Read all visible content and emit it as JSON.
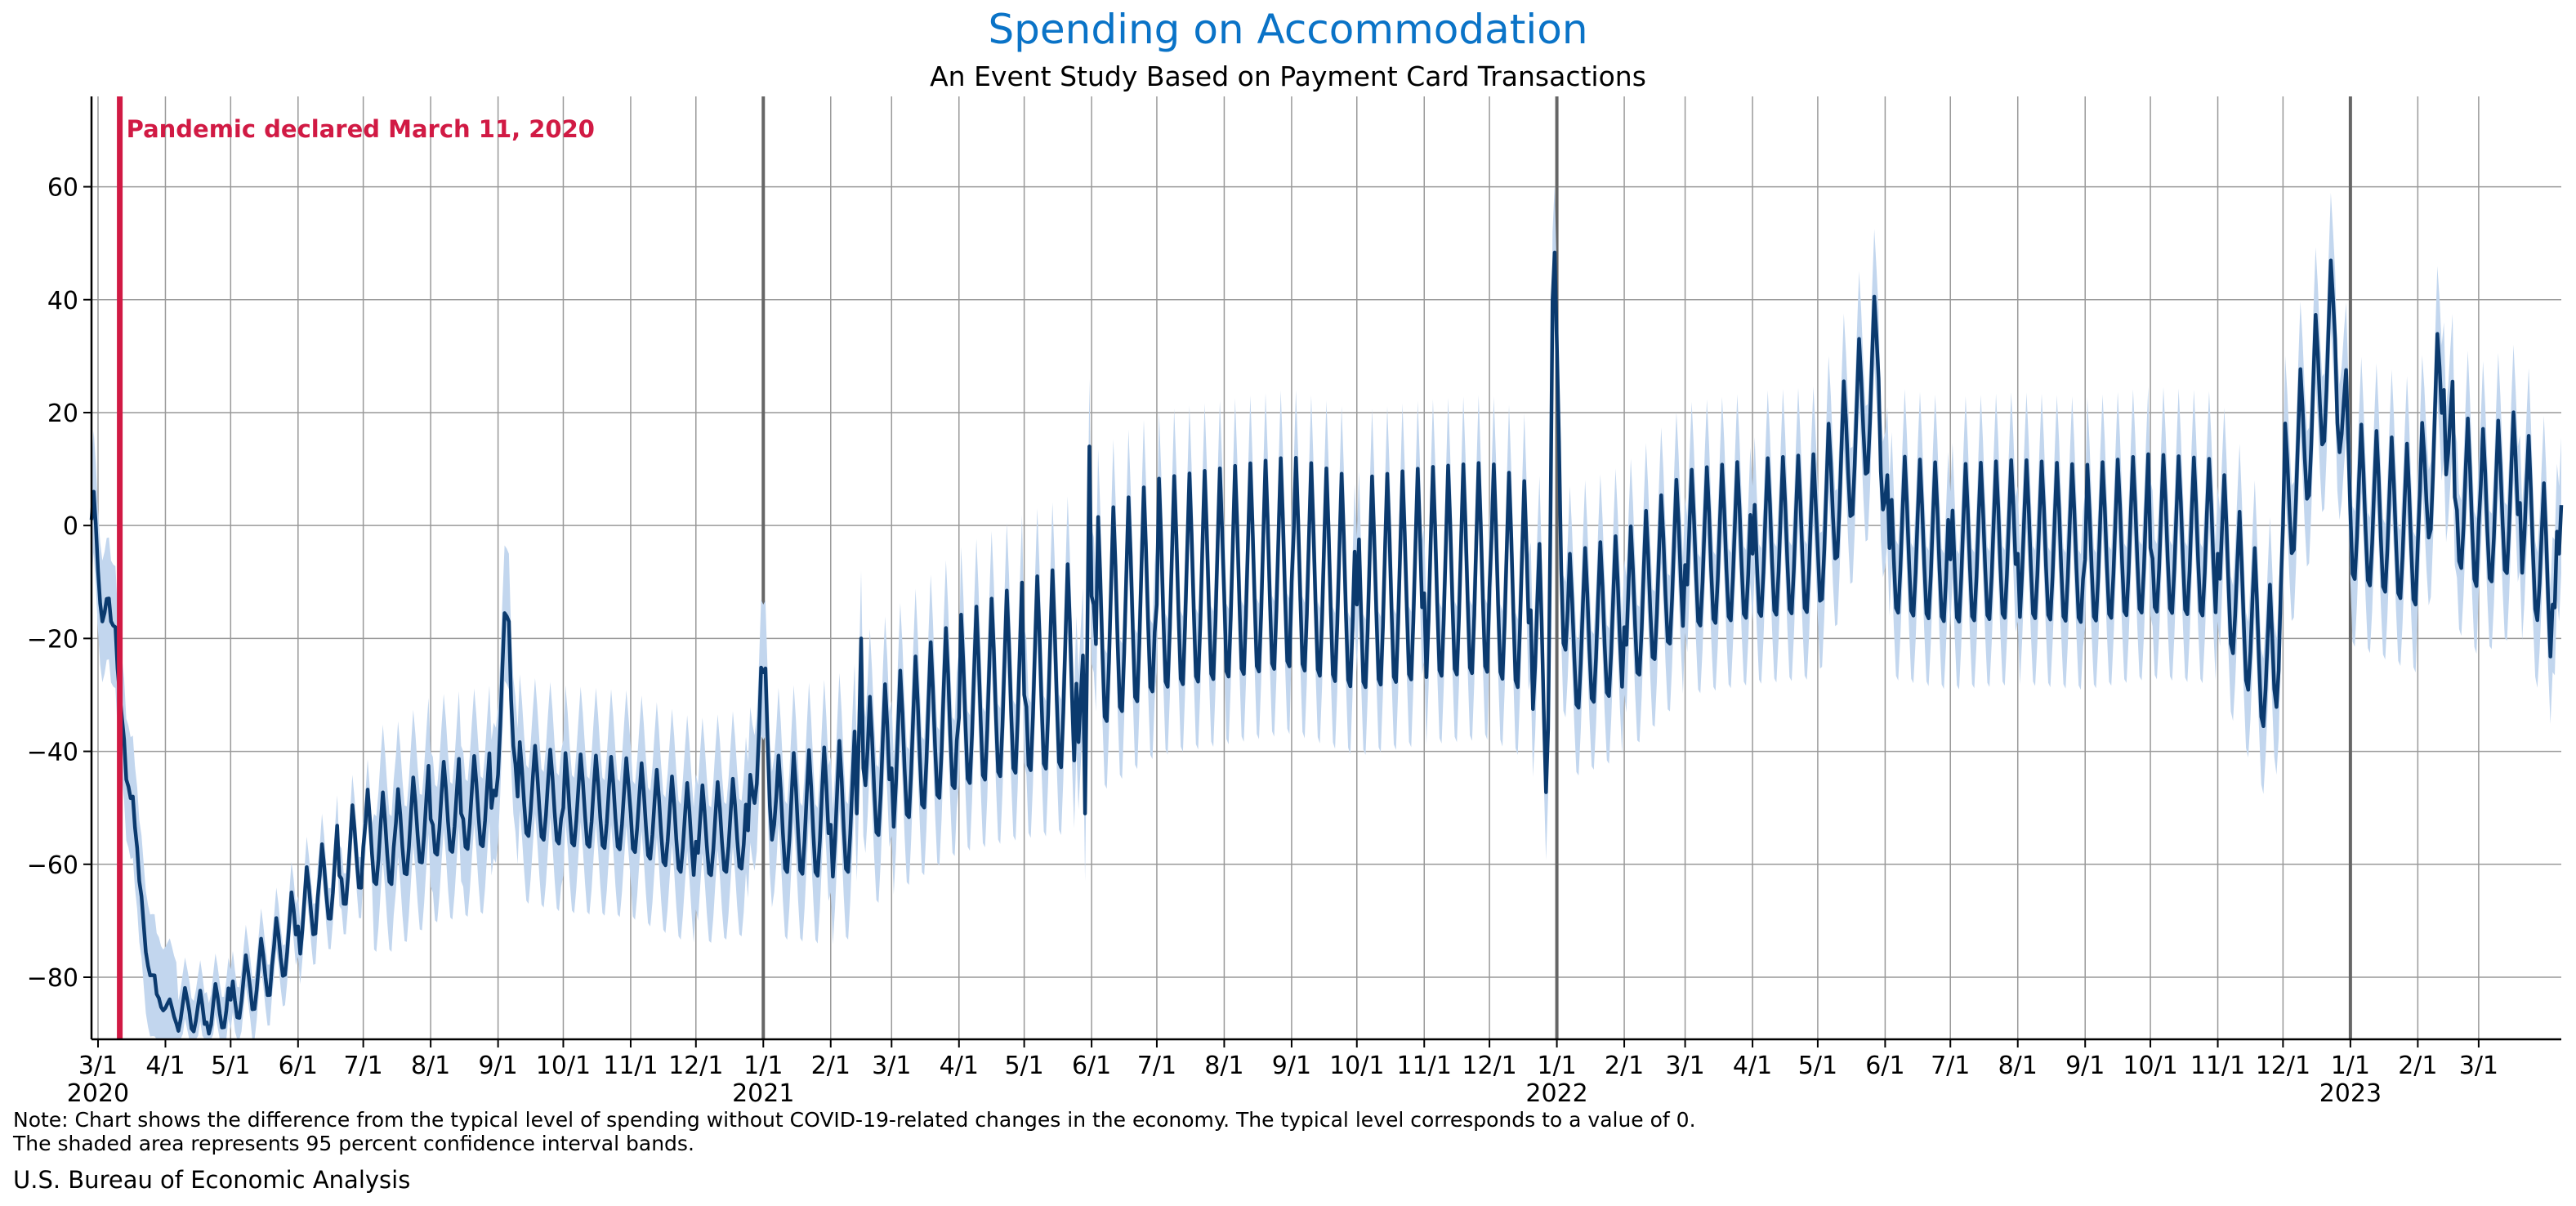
{
  "colors": {
    "title": "#0a73c7",
    "series": "#0b3a6e",
    "band": "#c2d6ee",
    "event": "#d11a44",
    "gridline": "#999999",
    "yearline": "#666666"
  },
  "title": "Spending on Accommodation",
  "subtitle": "An Event Study Based on Payment Card Transactions",
  "note_line1": "Note: Chart shows the difference from the typical level of spending without COVID-19-related changes in the economy. The typical level corresponds to a value of 0.",
  "note_line2": "The shaded area represents 95 percent confidence interval bands.",
  "source": "U.S. Bureau of Economic Analysis",
  "chart_data": {
    "type": "line",
    "x_axis": "date",
    "xlim": [
      "2020-02-27",
      "2023-04-08"
    ],
    "ylim": [
      -91,
      76
    ],
    "grid": true,
    "yticks": [
      -80,
      -60,
      -40,
      -20,
      0,
      20,
      40,
      60
    ],
    "ytick_labels": [
      "−80",
      "−60",
      "−40",
      "−20",
      "0",
      "20",
      "40",
      "60"
    ],
    "xticks": [
      {
        "date": "2020-03-01",
        "label": "3/1",
        "year": "2020"
      },
      {
        "date": "2020-04-01",
        "label": "4/1"
      },
      {
        "date": "2020-05-01",
        "label": "5/1"
      },
      {
        "date": "2020-06-01",
        "label": "6/1"
      },
      {
        "date": "2020-07-01",
        "label": "7/1"
      },
      {
        "date": "2020-08-01",
        "label": "8/1"
      },
      {
        "date": "2020-09-01",
        "label": "9/1"
      },
      {
        "date": "2020-10-01",
        "label": "10/1"
      },
      {
        "date": "2020-11-01",
        "label": "11/1"
      },
      {
        "date": "2020-12-01",
        "label": "12/1"
      },
      {
        "date": "2021-01-01",
        "label": "1/1",
        "year": "2021"
      },
      {
        "date": "2021-02-01",
        "label": "2/1"
      },
      {
        "date": "2021-03-01",
        "label": "3/1"
      },
      {
        "date": "2021-04-01",
        "label": "4/1"
      },
      {
        "date": "2021-05-01",
        "label": "5/1"
      },
      {
        "date": "2021-06-01",
        "label": "6/1"
      },
      {
        "date": "2021-07-01",
        "label": "7/1"
      },
      {
        "date": "2021-08-01",
        "label": "8/1"
      },
      {
        "date": "2021-09-01",
        "label": "9/1"
      },
      {
        "date": "2021-10-01",
        "label": "10/1"
      },
      {
        "date": "2021-11-01",
        "label": "11/1"
      },
      {
        "date": "2021-12-01",
        "label": "12/1"
      },
      {
        "date": "2022-01-01",
        "label": "1/1",
        "year": "2022"
      },
      {
        "date": "2022-02-01",
        "label": "2/1"
      },
      {
        "date": "2022-03-01",
        "label": "3/1"
      },
      {
        "date": "2022-04-01",
        "label": "4/1"
      },
      {
        "date": "2022-05-01",
        "label": "5/1"
      },
      {
        "date": "2022-06-01",
        "label": "6/1"
      },
      {
        "date": "2022-07-01",
        "label": "7/1"
      },
      {
        "date": "2022-08-01",
        "label": "8/1"
      },
      {
        "date": "2022-09-01",
        "label": "9/1"
      },
      {
        "date": "2022-10-01",
        "label": "10/1"
      },
      {
        "date": "2022-11-01",
        "label": "11/1"
      },
      {
        "date": "2022-12-01",
        "label": "12/1"
      },
      {
        "date": "2023-01-01",
        "label": "1/1",
        "year": "2023"
      },
      {
        "date": "2023-02-01",
        "label": "2/1"
      },
      {
        "date": "2023-03-01",
        "label": "3/1"
      }
    ],
    "event": {
      "date": "2020-03-11",
      "label": "Pandemic declared March 11, 2020"
    },
    "band_half_width": 12,
    "series": [
      {
        "data": [
          {
            "date": "2020-02-27",
            "y": 1
          },
          {
            "date": "2020-02-28",
            "y": 6
          },
          {
            "date": "2020-03-01",
            "y": -8
          },
          {
            "date": "2020-03-03",
            "y": -17
          },
          {
            "date": "2020-03-05",
            "y": -13
          },
          {
            "date": "2020-03-07",
            "y": -17
          },
          {
            "date": "2020-03-09",
            "y": -18
          },
          {
            "date": "2020-03-11",
            "y": -30
          },
          {
            "date": "2020-03-14",
            "y": -45
          },
          {
            "date": "2020-03-17",
            "y": -48
          },
          {
            "date": "2020-03-20",
            "y": -63
          },
          {
            "date": "2020-03-24",
            "y": -78
          },
          {
            "date": "2020-03-28",
            "y": -83
          },
          {
            "date": "2020-04-05",
            "y": -87
          },
          {
            "date": "2020-04-12",
            "y": -86
          },
          {
            "date": "2020-04-20",
            "y": -88
          },
          {
            "date": "2020-05-01",
            "y": -84
          },
          {
            "date": "2020-05-10",
            "y": -82
          },
          {
            "date": "2020-05-20",
            "y": -78
          },
          {
            "date": "2020-06-01",
            "y": -71
          },
          {
            "date": "2020-06-10",
            "y": -66
          },
          {
            "date": "2020-06-20",
            "y": -62
          },
          {
            "date": "2020-07-01",
            "y": -57
          },
          {
            "date": "2020-07-15",
            "y": -57
          },
          {
            "date": "2020-08-01",
            "y": -52
          },
          {
            "date": "2020-08-15",
            "y": -51
          },
          {
            "date": "2020-08-29",
            "y": -50
          },
          {
            "date": "2020-09-06",
            "y": -17
          },
          {
            "date": "2020-09-10",
            "y": -48
          },
          {
            "date": "2020-10-01",
            "y": -50
          },
          {
            "date": "2020-11-01",
            "y": -51
          },
          {
            "date": "2020-12-01",
            "y": -56
          },
          {
            "date": "2020-12-25",
            "y": -54
          },
          {
            "date": "2021-01-01",
            "y": -26
          },
          {
            "date": "2021-01-06",
            "y": -53
          },
          {
            "date": "2021-02-01",
            "y": -53
          },
          {
            "date": "2021-02-13",
            "y": -51
          },
          {
            "date": "2021-02-15",
            "y": -20
          },
          {
            "date": "2021-02-17",
            "y": -46
          },
          {
            "date": "2021-03-01",
            "y": -43
          },
          {
            "date": "2021-04-01",
            "y": -34
          },
          {
            "date": "2021-05-01",
            "y": -30
          },
          {
            "date": "2021-05-25",
            "y": -28
          },
          {
            "date": "2021-05-29",
            "y": -51
          },
          {
            "date": "2021-05-31",
            "y": 14
          },
          {
            "date": "2021-06-03",
            "y": -21
          },
          {
            "date": "2021-07-01",
            "y": -14
          },
          {
            "date": "2021-08-01",
            "y": -12
          },
          {
            "date": "2021-09-01",
            "y": -10
          },
          {
            "date": "2021-10-01",
            "y": -14
          },
          {
            "date": "2021-11-01",
            "y": -12
          },
          {
            "date": "2021-12-01",
            "y": -11
          },
          {
            "date": "2021-12-20",
            "y": -15
          },
          {
            "date": "2021-12-28",
            "y": -36
          },
          {
            "date": "2021-12-30",
            "y": 40
          },
          {
            "date": "2022-01-02",
            "y": 15
          },
          {
            "date": "2022-01-05",
            "y": -22
          },
          {
            "date": "2022-02-01",
            "y": -18
          },
          {
            "date": "2022-03-01",
            "y": -7
          },
          {
            "date": "2022-04-01",
            "y": -5
          },
          {
            "date": "2022-05-01",
            "y": -4
          },
          {
            "date": "2022-05-29",
            "y": 26
          },
          {
            "date": "2022-06-03",
            "y": -4
          },
          {
            "date": "2022-07-01",
            "y": -6
          },
          {
            "date": "2022-08-01",
            "y": -5
          },
          {
            "date": "2022-09-01",
            "y": -6
          },
          {
            "date": "2022-10-01",
            "y": -4
          },
          {
            "date": "2022-11-01",
            "y": -5
          },
          {
            "date": "2022-11-27",
            "y": -29
          },
          {
            "date": "2022-12-01",
            "y": 0
          },
          {
            "date": "2022-12-25",
            "y": 33
          },
          {
            "date": "2023-01-01",
            "y": 2
          },
          {
            "date": "2023-02-01",
            "y": -3
          },
          {
            "date": "2023-02-13",
            "y": 24
          },
          {
            "date": "2023-02-18",
            "y": 5
          },
          {
            "date": "2023-03-01",
            "y": 0
          },
          {
            "date": "2023-03-20",
            "y": 4
          },
          {
            "date": "2023-04-04",
            "y": -14
          },
          {
            "date": "2023-04-07",
            "y": -5
          }
        ]
      }
    ]
  }
}
